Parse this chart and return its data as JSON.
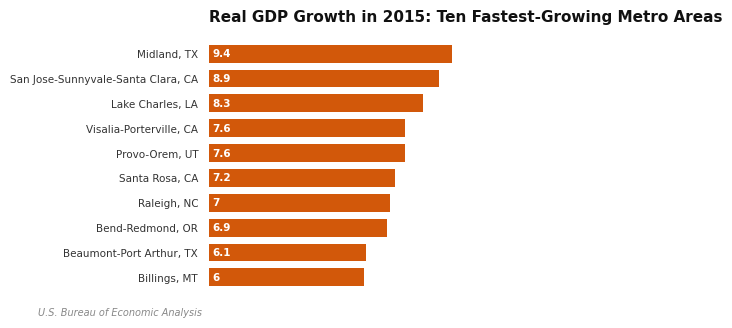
{
  "title": "Real GDP Growth in 2015: Ten Fastest-Growing Metro Areas",
  "categories": [
    "Billings, MT",
    "Beaumont-Port Arthur, TX",
    "Bend-Redmond, OR",
    "Raleigh, NC",
    "Santa Rosa, CA",
    "Provo-Orem, UT",
    "Visalia-Porterville, CA",
    "Lake Charles, LA",
    "San Jose-Sunnyvale-Santa Clara, CA",
    "Midland, TX"
  ],
  "values": [
    6.0,
    6.1,
    6.9,
    7.0,
    7.2,
    7.6,
    7.6,
    8.3,
    8.9,
    9.4
  ],
  "bar_color": "#d2580a",
  "label_color": "#ffffff",
  "title_fontsize": 11,
  "bar_label_fontsize": 7.5,
  "ytick_fontsize": 7.5,
  "footnote": "U.S. Bureau of Economic Analysis",
  "footnote_fontsize": 7,
  "background_color": "#ffffff",
  "xlim": [
    0,
    10.8
  ]
}
